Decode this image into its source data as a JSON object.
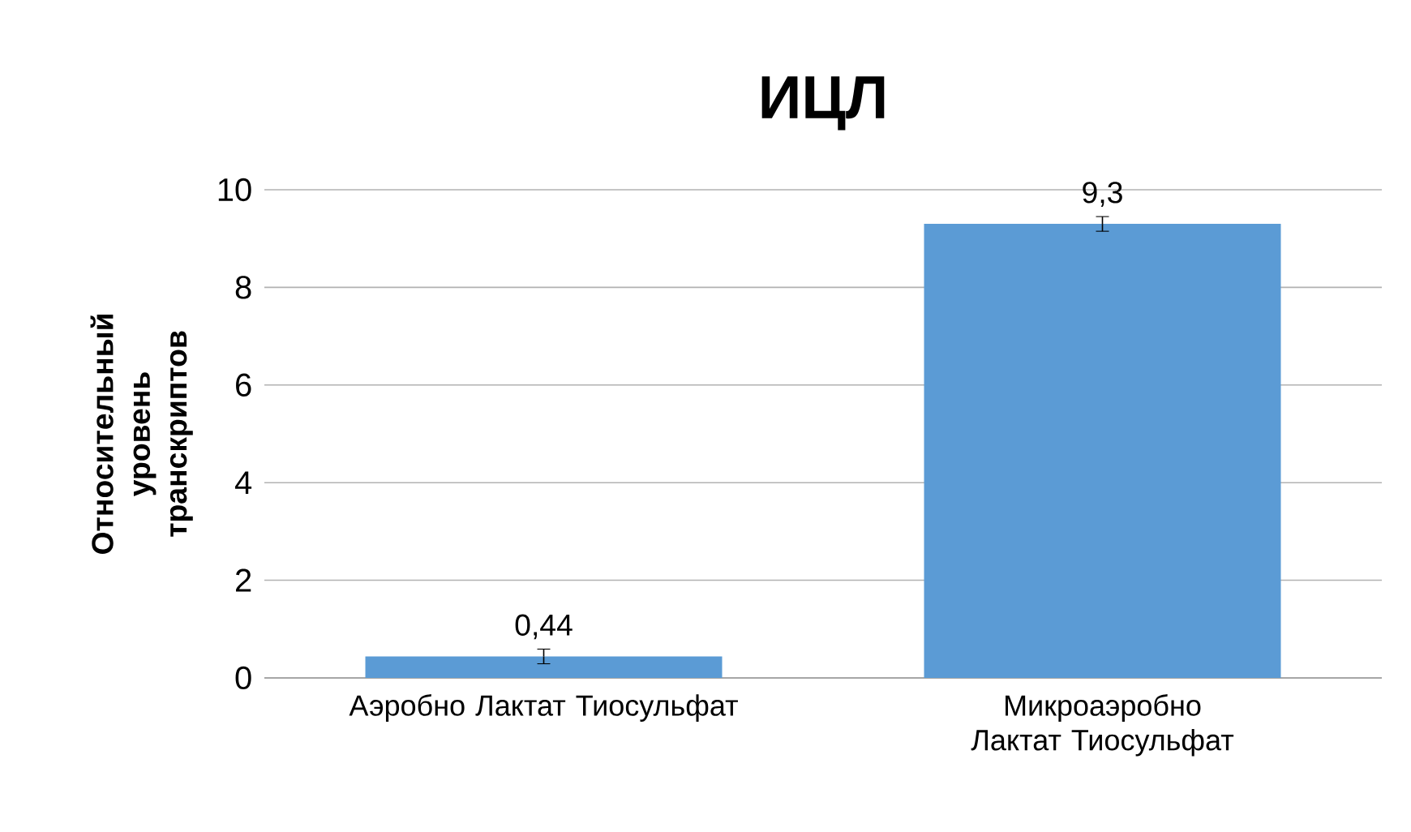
{
  "chart_data": {
    "type": "bar",
    "title": "ИЦЛ",
    "ylabel": "Относительный уровень транскриптов",
    "categories": [
      "Аэробно Лактат Тиосульфат",
      "Микроаэробно Лактат Тиосульфат"
    ],
    "values": [
      0.44,
      9.3
    ],
    "errors": [
      0.15,
      0.15
    ],
    "value_labels": [
      "0,44",
      "9,3"
    ],
    "color": "#5b9bd5",
    "ylim": [
      0,
      10
    ],
    "yticks": [
      0,
      2,
      4,
      6,
      8,
      10
    ],
    "grid": "y"
  }
}
